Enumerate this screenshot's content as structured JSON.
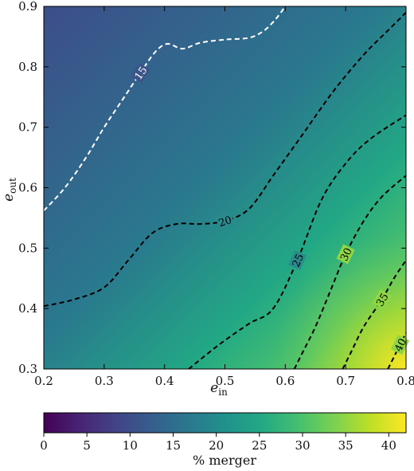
{
  "chart_data": {
    "type": "heatmap",
    "title": "",
    "xlabel": "e",
    "xlabel_sub": "in",
    "ylabel": "e",
    "ylabel_sub": "out",
    "xlim": [
      0.2,
      0.8
    ],
    "ylim": [
      0.3,
      0.9
    ],
    "xticks": [
      "0.2",
      "0.3",
      "0.4",
      "0.5",
      "0.6",
      "0.7",
      "0.8"
    ],
    "yticks": [
      "0.3",
      "0.4",
      "0.5",
      "0.6",
      "0.7",
      "0.8",
      "0.9"
    ],
    "colormap": "viridis",
    "colorbar": {
      "label": "% merger",
      "range": [
        0,
        42
      ],
      "ticks": [
        "0",
        "5",
        "10",
        "15",
        "20",
        "25",
        "30",
        "35",
        "40"
      ]
    },
    "contours": [
      {
        "level": 15,
        "label": "15",
        "color": "#ffffff",
        "points": [
          [
            0.2,
            0.562
          ],
          [
            0.235,
            0.6
          ],
          [
            0.27,
            0.65
          ],
          [
            0.3,
            0.7
          ],
          [
            0.33,
            0.745
          ],
          [
            0.36,
            0.79
          ],
          [
            0.385,
            0.825
          ],
          [
            0.405,
            0.838
          ],
          [
            0.43,
            0.83
          ],
          [
            0.46,
            0.84
          ],
          [
            0.5,
            0.845
          ],
          [
            0.54,
            0.848
          ],
          [
            0.565,
            0.86
          ],
          [
            0.585,
            0.88
          ],
          [
            0.6,
            0.9
          ]
        ]
      },
      {
        "level": 20,
        "label": "20",
        "color": "#000000",
        "points": [
          [
            0.2,
            0.404
          ],
          [
            0.25,
            0.415
          ],
          [
            0.3,
            0.435
          ],
          [
            0.34,
            0.48
          ],
          [
            0.38,
            0.525
          ],
          [
            0.42,
            0.54
          ],
          [
            0.46,
            0.54
          ],
          [
            0.5,
            0.545
          ],
          [
            0.54,
            0.565
          ],
          [
            0.58,
            0.62
          ],
          [
            0.63,
            0.69
          ],
          [
            0.68,
            0.76
          ],
          [
            0.73,
            0.82
          ],
          [
            0.77,
            0.86
          ],
          [
            0.8,
            0.89
          ]
        ]
      },
      {
        "level": 25,
        "label": "25",
        "color": "#000000",
        "points": [
          [
            0.44,
            0.3
          ],
          [
            0.49,
            0.34
          ],
          [
            0.54,
            0.375
          ],
          [
            0.58,
            0.4
          ],
          [
            0.62,
            0.48
          ],
          [
            0.66,
            0.58
          ],
          [
            0.7,
            0.64
          ],
          [
            0.74,
            0.68
          ],
          [
            0.8,
            0.72
          ]
        ]
      },
      {
        "level": 30,
        "label": "30",
        "color": "#000000",
        "points": [
          [
            0.615,
            0.3
          ],
          [
            0.63,
            0.33
          ],
          [
            0.65,
            0.37
          ],
          [
            0.675,
            0.43
          ],
          [
            0.7,
            0.49
          ],
          [
            0.73,
            0.545
          ],
          [
            0.76,
            0.585
          ],
          [
            0.8,
            0.62
          ]
        ]
      },
      {
        "level": 35,
        "label": "35",
        "color": "#000000",
        "points": [
          [
            0.695,
            0.3
          ],
          [
            0.71,
            0.33
          ],
          [
            0.73,
            0.37
          ],
          [
            0.76,
            0.415
          ],
          [
            0.78,
            0.45
          ],
          [
            0.8,
            0.48
          ]
        ]
      },
      {
        "level": 40,
        "label": "40",
        "color": "#000000",
        "points": [
          [
            0.77,
            0.3
          ],
          [
            0.78,
            0.32
          ],
          [
            0.79,
            0.34
          ],
          [
            0.8,
            0.36
          ]
        ]
      }
    ]
  }
}
